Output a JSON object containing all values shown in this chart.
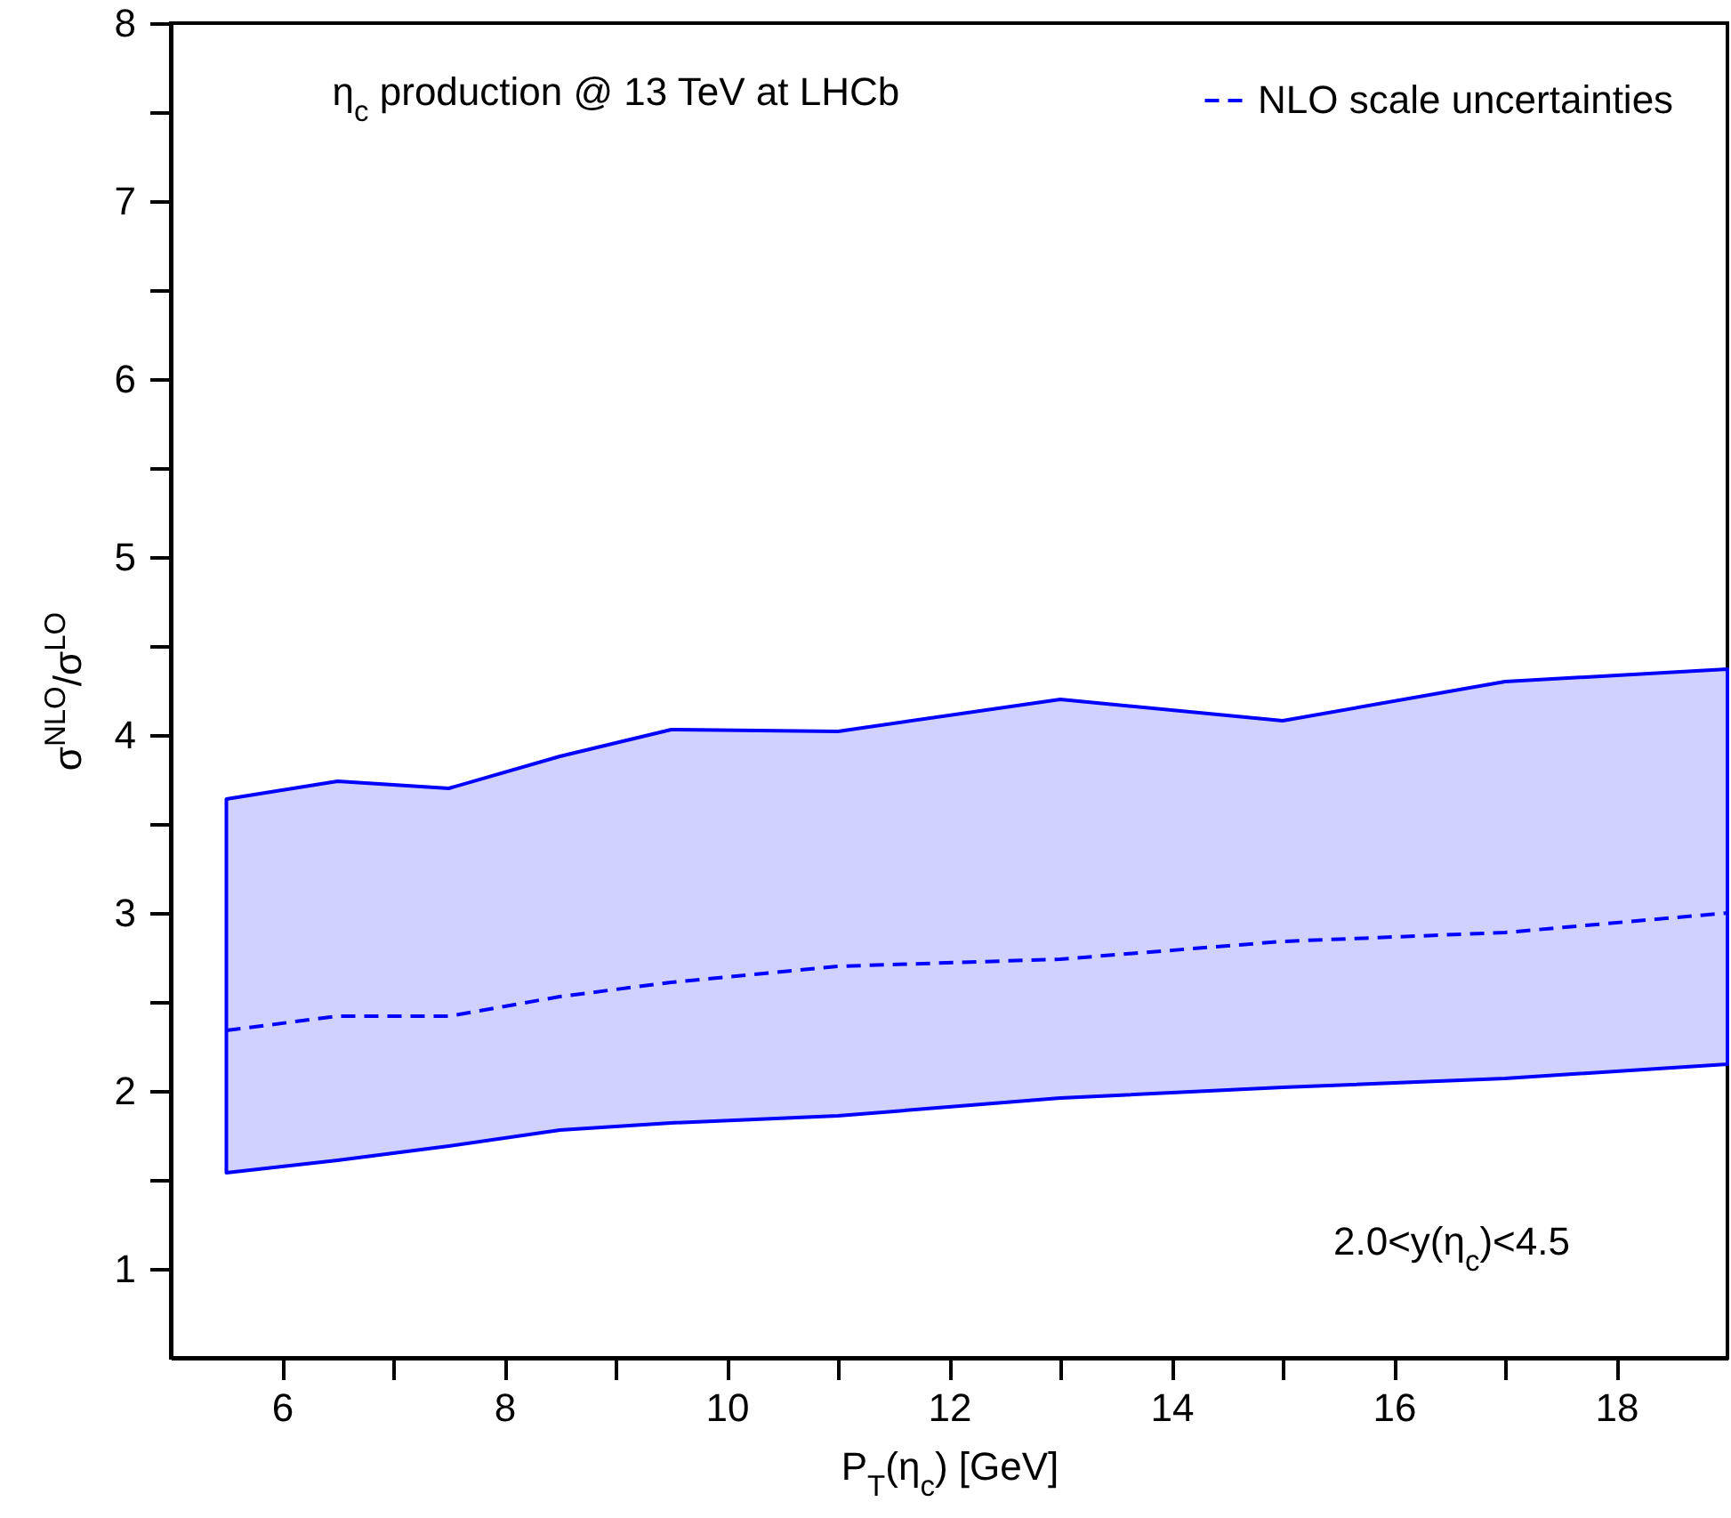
{
  "chart_data": {
    "type": "line",
    "title": "η$_{c}$ production @ 13 TeV at LHCb",
    "xlabel": "P$_{T}$(η$_{c}$) [GeV]",
    "ylabel": "σ$^{NLO}$/σ$^{LO}$",
    "x": [
      5.5,
      6.5,
      7.5,
      8.5,
      9.5,
      11,
      13,
      15,
      17,
      19
    ],
    "series": [
      {
        "name": "NLO scale uncertainties",
        "color": "#0000ff",
        "line_style": "dashed",
        "values": [
          2.34,
          2.42,
          2.42,
          2.53,
          2.61,
          2.7,
          2.74,
          2.84,
          2.89,
          3.0
        ],
        "lower": [
          1.54,
          1.61,
          1.69,
          1.78,
          1.82,
          1.86,
          1.96,
          2.02,
          2.07,
          2.15
        ],
        "upper": [
          3.64,
          3.74,
          3.7,
          3.88,
          4.03,
          4.02,
          4.2,
          4.08,
          4.3,
          4.37
        ]
      }
    ],
    "xlim": [
      5,
      19
    ],
    "xticks": [
      6,
      {
        "value": 7,
        "label": null
      },
      8,
      {
        "value": 9,
        "label": null
      },
      10,
      {
        "value": 11,
        "label": null
      },
      12,
      {
        "value": 13,
        "label": null
      },
      14,
      {
        "value": 15,
        "label": null
      },
      16,
      {
        "value": 17,
        "label": null
      },
      18
    ],
    "ylim": [
      0.5,
      8
    ],
    "yticks": [
      1,
      {
        "value": 1.5,
        "label": null
      },
      2,
      {
        "value": 2.5,
        "label": null
      },
      3,
      {
        "value": 3.5,
        "label": null
      },
      4,
      {
        "value": 4.5,
        "label": null
      },
      5,
      {
        "value": 5.5,
        "label": null
      },
      6,
      {
        "value": 6.5,
        "label": null
      },
      7,
      {
        "value": 7.5,
        "label": null
      },
      8
    ],
    "annotations": [
      "2.0<y(η$_{c}$)<4.5"
    ],
    "legend": "top right",
    "grid": false
  }
}
